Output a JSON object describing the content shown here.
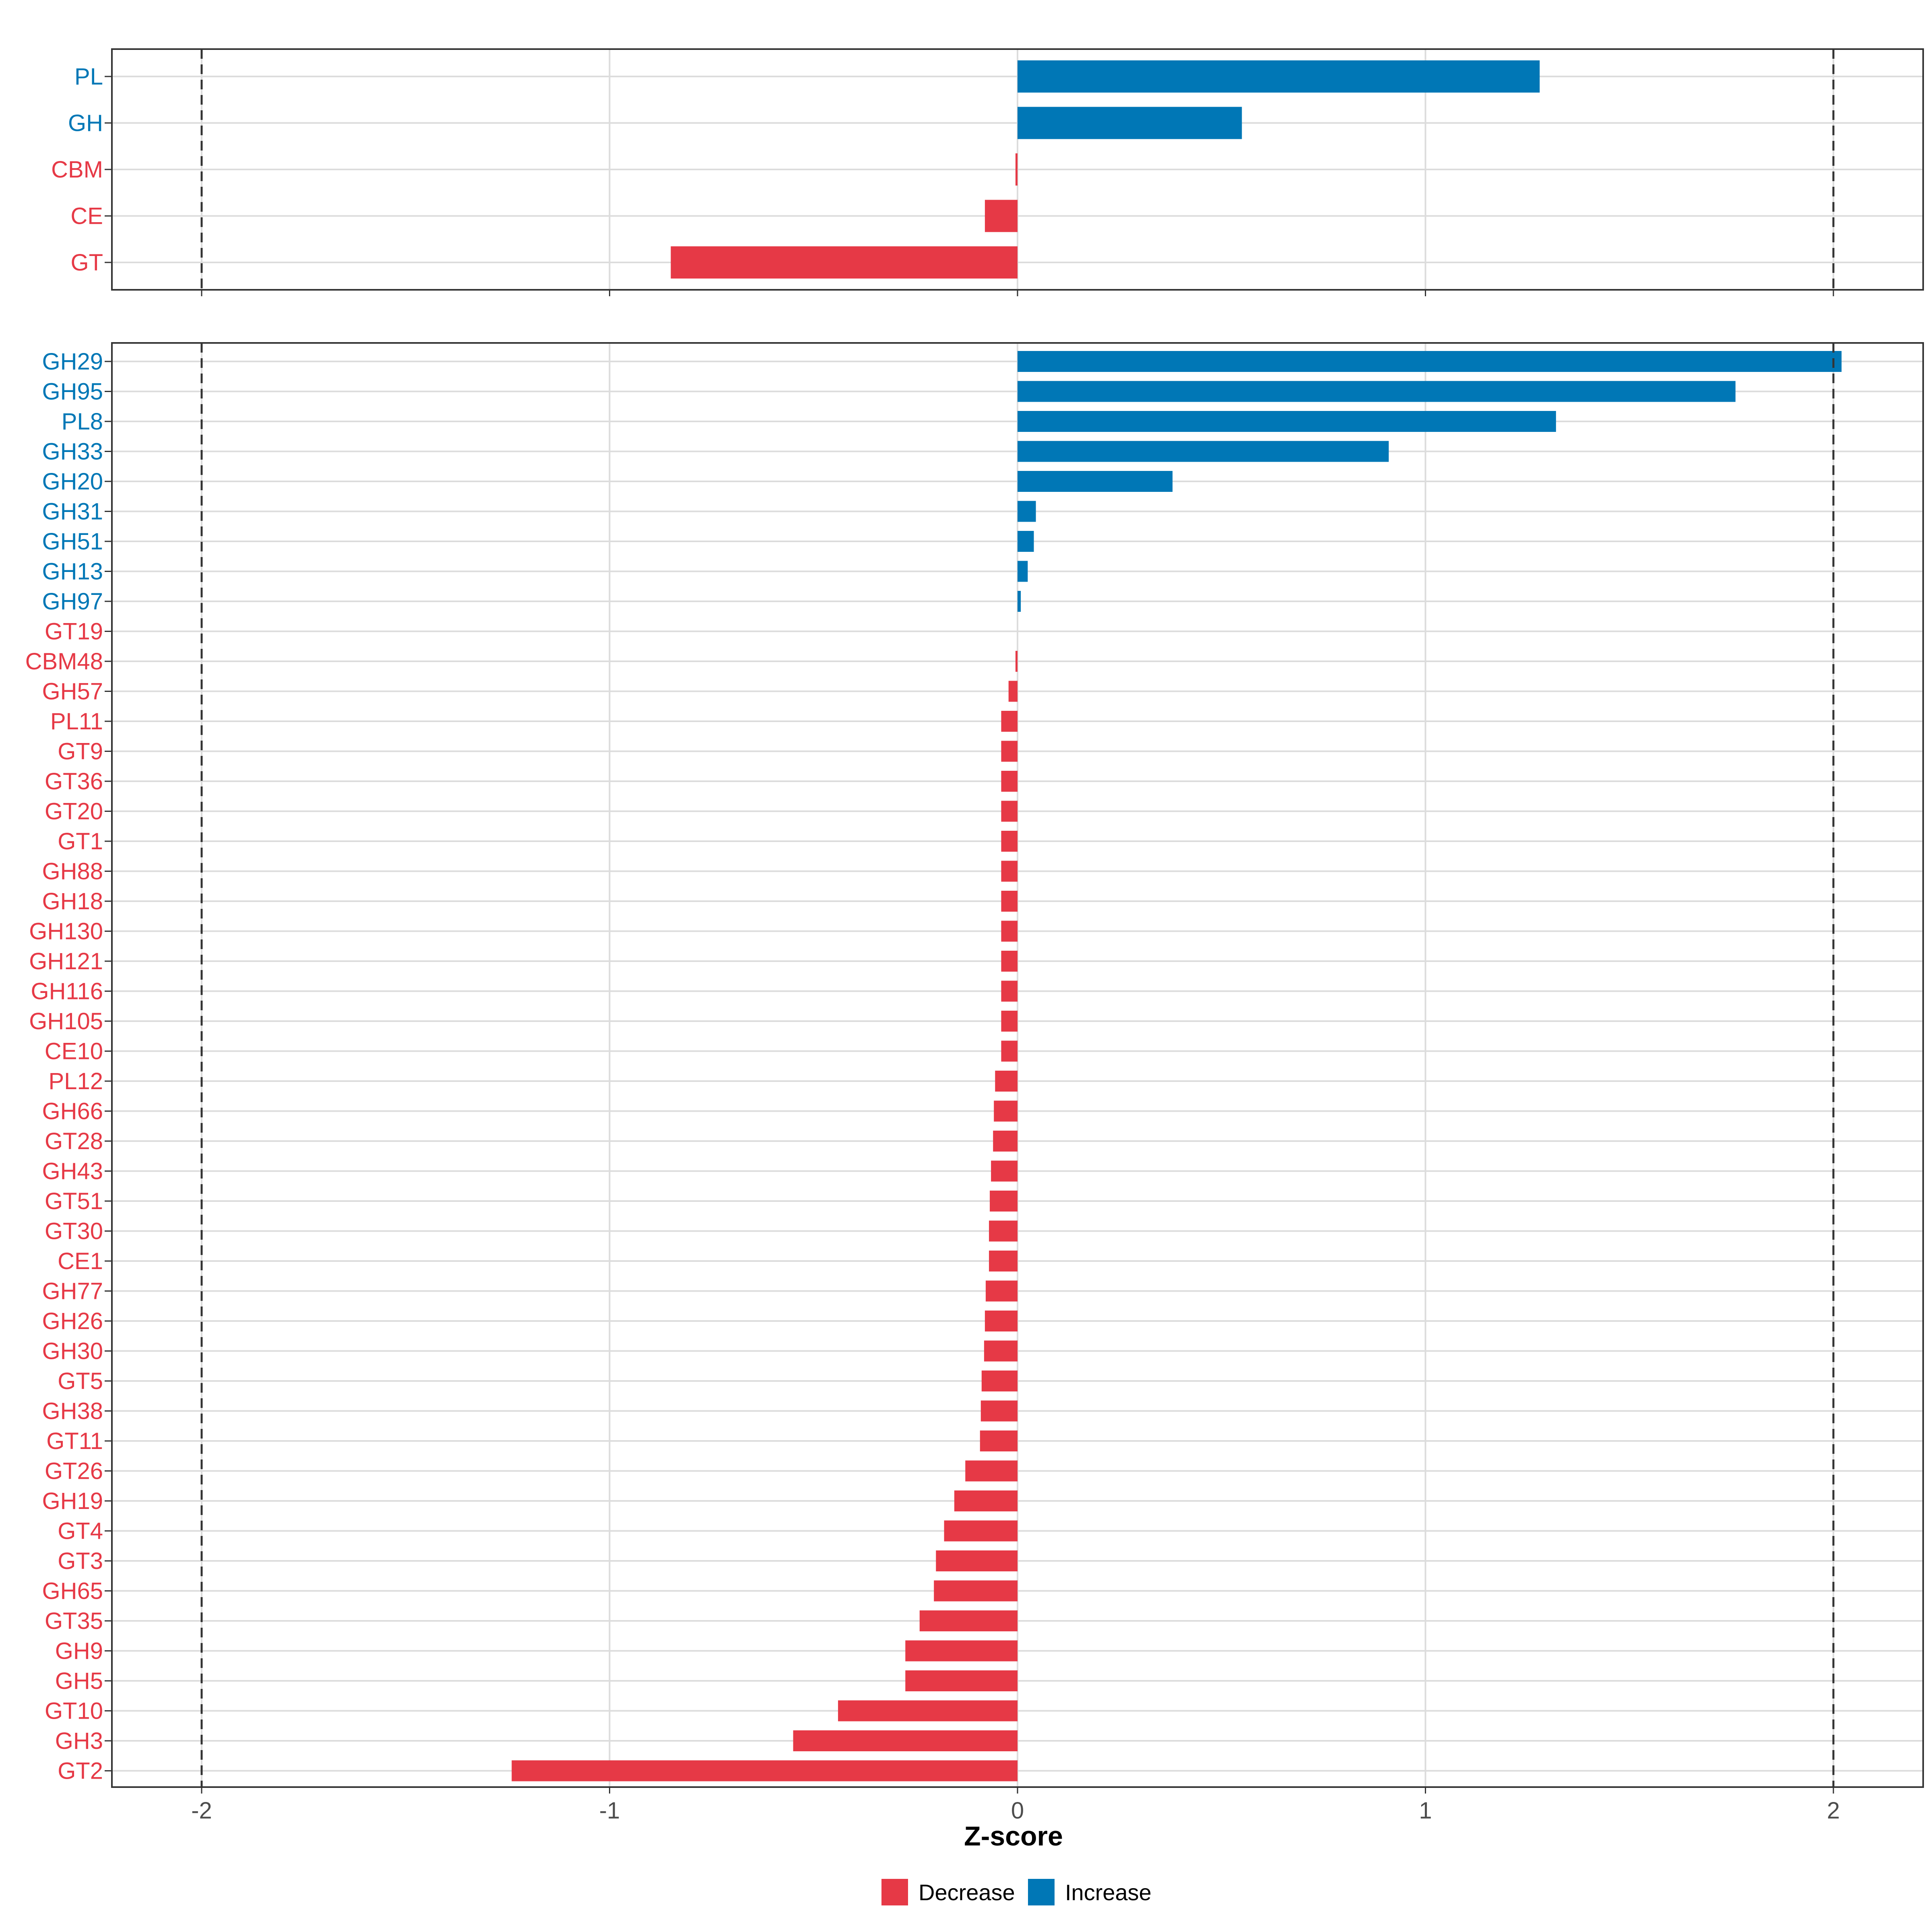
{
  "chart_data": [
    {
      "type": "bar",
      "orientation": "horizontal",
      "panel": "top",
      "categories": [
        "PL",
        "GH",
        "CBM",
        "CE",
        "GT"
      ],
      "values": [
        1.28,
        0.55,
        -0.005,
        -0.08,
        -0.85
      ],
      "xlim": [
        -2.22,
        2.22
      ]
    },
    {
      "type": "bar",
      "orientation": "horizontal",
      "panel": "bottom",
      "categories": [
        "GH29",
        "GH95",
        "PL8",
        "GH33",
        "GH20",
        "GH31",
        "GH51",
        "GH13",
        "GH97",
        "GT19",
        "CBM48",
        "GH57",
        "PL11",
        "GT9",
        "GT36",
        "GT20",
        "GT1",
        "GH88",
        "GH18",
        "GH130",
        "GH121",
        "GH116",
        "GH105",
        "CE10",
        "PL12",
        "GH66",
        "GT28",
        "GH43",
        "GT51",
        "GT30",
        "CE1",
        "GH77",
        "GH26",
        "GH30",
        "GT5",
        "GH38",
        "GT11",
        "GT26",
        "GH19",
        "GT4",
        "GT3",
        "GH65",
        "GT35",
        "GH9",
        "GH5",
        "GT10",
        "GH3",
        "GT2"
      ],
      "values": [
        2.02,
        1.76,
        1.32,
        0.91,
        0.38,
        0.045,
        0.04,
        0.025,
        0.008,
        0.0,
        -0.005,
        -0.022,
        -0.04,
        -0.04,
        -0.04,
        -0.04,
        -0.04,
        -0.04,
        -0.04,
        -0.04,
        -0.04,
        -0.04,
        -0.04,
        -0.04,
        -0.055,
        -0.058,
        -0.06,
        -0.065,
        -0.068,
        -0.07,
        -0.07,
        -0.078,
        -0.08,
        -0.082,
        -0.088,
        -0.09,
        -0.092,
        -0.128,
        -0.155,
        -0.18,
        -0.2,
        -0.205,
        -0.24,
        -0.275,
        -0.275,
        -0.44,
        -0.55,
        -1.24
      ],
      "xlim": [
        -2.22,
        2.22
      ],
      "xticks": [
        "-2",
        "-1",
        "0",
        "1",
        "2"
      ],
      "xtick_values": [
        -2,
        -1,
        0,
        1,
        2
      ],
      "reference_lines": [
        -2,
        2
      ],
      "xlabel": "Z-score"
    }
  ],
  "legend": [
    {
      "label": "Decrease",
      "color": "#E63946"
    },
    {
      "label": "Increase",
      "color": "#0077B6"
    }
  ],
  "colors": {
    "decrease": "#E63946",
    "increase": "#0077B6",
    "grid": "#dcdcdc",
    "frame": "#333333"
  }
}
